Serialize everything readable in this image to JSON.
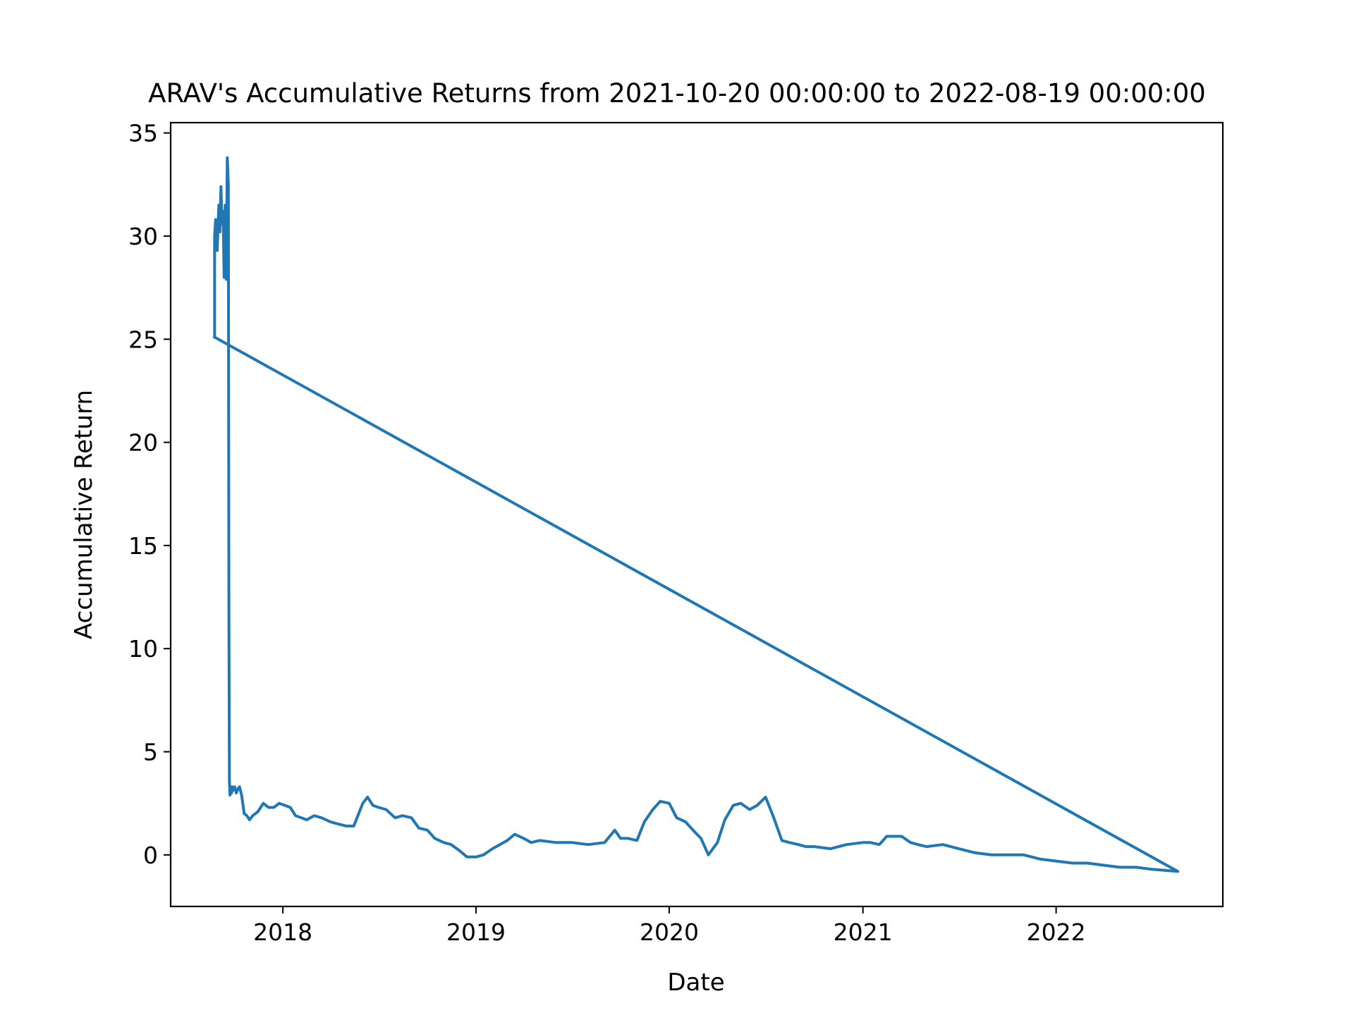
{
  "chart_data": {
    "type": "line",
    "title": "ARAV's Accumulative Returns from 2021-10-20 00:00:00 to 2022-08-19 00:00:00",
    "xlabel": "Date",
    "ylabel": "Accumulative Return",
    "xlim": [
      "2017-06-03",
      "2022-11-12"
    ],
    "ylim": [
      -2.5,
      35.5
    ],
    "x_ticks": [
      "2018",
      "2019",
      "2020",
      "2021",
      "2022"
    ],
    "y_ticks": [
      "0",
      "5",
      "10",
      "15",
      "20",
      "25",
      "30",
      "35"
    ],
    "grid": false,
    "series": [
      {
        "color": "#1f77b4",
        "x": [
          "2017-08-25",
          "2017-08-25",
          "2017-08-27",
          "2017-08-30",
          "2017-09-02",
          "2017-09-04",
          "2017-09-06",
          "2017-09-08",
          "2017-09-10",
          "2017-09-12",
          "2017-09-14",
          "2017-09-16",
          "2017-09-18",
          "2017-09-20",
          "2017-09-21",
          "2017-09-22",
          "2017-09-23",
          "2017-09-24",
          "2017-09-26",
          "2017-09-26",
          "2017-09-27",
          "2017-09-28",
          "2017-09-30",
          "2017-10-02",
          "2017-10-05",
          "2017-10-08",
          "2017-10-11",
          "2017-10-15",
          "2017-10-20",
          "2017-10-25",
          "2017-10-30",
          "2017-11-05",
          "2017-11-15",
          "2017-11-25",
          "2017-12-05",
          "2017-12-15",
          "2017-12-25",
          "2018-01-05",
          "2018-01-15",
          "2018-01-25",
          "2018-02-05",
          "2018-02-15",
          "2018-03-01",
          "2018-03-15",
          "2018-04-01",
          "2018-04-15",
          "2018-05-01",
          "2018-05-15",
          "2018-06-01",
          "2018-06-10",
          "2018-06-20",
          "2018-07-01",
          "2018-07-15",
          "2018-08-01",
          "2018-08-15",
          "2018-09-01",
          "2018-09-15",
          "2018-10-01",
          "2018-10-15",
          "2018-11-01",
          "2018-11-15",
          "2018-12-01",
          "2018-12-15",
          "2019-01-01",
          "2019-01-15",
          "2019-02-01",
          "2019-02-15",
          "2019-03-01",
          "2019-03-15",
          "2019-04-01",
          "2019-04-15",
          "2019-05-01",
          "2019-06-01",
          "2019-07-01",
          "2019-08-01",
          "2019-09-01",
          "2019-09-20",
          "2019-10-01",
          "2019-10-15",
          "2019-11-01",
          "2019-11-15",
          "2019-12-01",
          "2019-12-15",
          "2020-01-01",
          "2020-01-15",
          "2020-02-01",
          "2020-02-15",
          "2020-03-01",
          "2020-03-15",
          "2020-04-01",
          "2020-04-15",
          "2020-05-01",
          "2020-05-15",
          "2020-06-01",
          "2020-06-15",
          "2020-07-01",
          "2020-07-15",
          "2020-08-01",
          "2020-08-15",
          "2020-09-01",
          "2020-09-15",
          "2020-10-01",
          "2020-11-01",
          "2020-12-01",
          "2021-01-01",
          "2021-01-15",
          "2021-02-01",
          "2021-02-15",
          "2021-03-01",
          "2021-03-15",
          "2021-04-01",
          "2021-04-15",
          "2021-05-01",
          "2021-06-01",
          "2021-07-01",
          "2021-08-01",
          "2021-09-01",
          "2021-10-01",
          "2021-11-01",
          "2021-12-01",
          "2022-01-01",
          "2022-02-01",
          "2022-03-01",
          "2022-04-01",
          "2022-05-01",
          "2022-06-01",
          "2022-07-01",
          "2022-08-19",
          "2017-08-25"
        ],
        "y": [
          25.1,
          30.0,
          30.8,
          29.3,
          31.5,
          30.2,
          32.4,
          30.6,
          31.2,
          28.0,
          31.5,
          27.9,
          33.8,
          32.5,
          12.0,
          3.6,
          2.9,
          3.3,
          3.2,
          3.0,
          3.3,
          3.1,
          3.2,
          3.3,
          3.0,
          3.2,
          3.3,
          2.9,
          2.0,
          1.9,
          1.7,
          1.9,
          2.1,
          2.5,
          2.3,
          2.3,
          2.5,
          2.4,
          2.3,
          1.9,
          1.8,
          1.7,
          1.9,
          1.8,
          1.6,
          1.5,
          1.4,
          1.4,
          2.5,
          2.8,
          2.4,
          2.3,
          2.2,
          1.8,
          1.9,
          1.8,
          1.3,
          1.2,
          0.8,
          0.6,
          0.5,
          0.2,
          -0.1,
          -0.1,
          0.0,
          0.3,
          0.5,
          0.7,
          1.0,
          0.8,
          0.6,
          0.7,
          0.6,
          0.6,
          0.5,
          0.6,
          1.2,
          0.8,
          0.8,
          0.7,
          1.6,
          2.2,
          2.6,
          2.5,
          1.8,
          1.6,
          1.2,
          0.8,
          0.0,
          0.6,
          1.7,
          2.4,
          2.5,
          2.2,
          2.4,
          2.8,
          1.9,
          0.7,
          0.6,
          0.5,
          0.4,
          0.4,
          0.3,
          0.5,
          0.6,
          0.6,
          0.5,
          0.9,
          0.9,
          0.9,
          0.6,
          0.5,
          0.4,
          0.5,
          0.3,
          0.1,
          0.0,
          0.0,
          0.0,
          -0.2,
          -0.3,
          -0.4,
          -0.4,
          -0.5,
          -0.6,
          -0.6,
          -0.7,
          -0.8,
          25.1
        ]
      }
    ]
  }
}
